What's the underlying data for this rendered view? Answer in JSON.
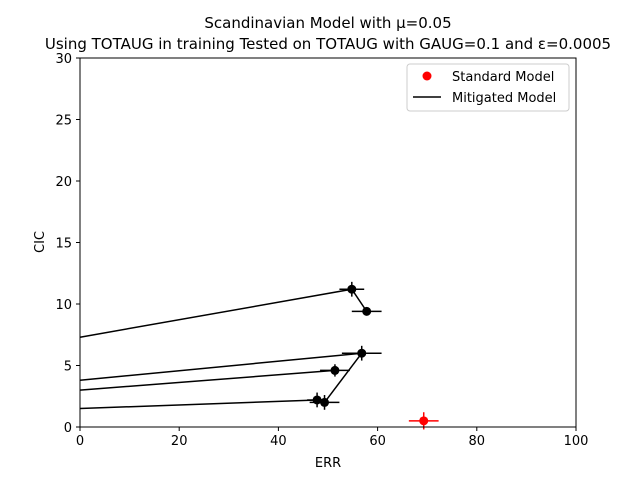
{
  "chart_data": {
    "type": "scatter",
    "title_line1": "Scandinavian Model with μ=0.05",
    "title_line2": "Using TOTAUG in training Tested on TOTAUG with GAUG=0.1 and ε=0.0005",
    "xlabel": "ERR",
    "ylabel": "CIC",
    "xlim": [
      0,
      100
    ],
    "ylim": [
      0,
      30
    ],
    "xticks": [
      "0",
      "20",
      "40",
      "60",
      "80",
      "100"
    ],
    "yticks": [
      "0",
      "5",
      "10",
      "15",
      "20",
      "25",
      "30"
    ],
    "grid": false,
    "legend_position": "top-right",
    "legend": [
      {
        "label": "Standard Model",
        "marker": "circle",
        "color": "#ff0000"
      },
      {
        "label": "Mitigated Model",
        "marker": "line",
        "color": "#000000"
      }
    ],
    "standard_points": [
      {
        "x": 69.3,
        "y": 0.5,
        "xerr": 3.0,
        "yerr": 0.7
      }
    ],
    "mitigated_points": [
      {
        "x": 54.8,
        "y": 11.2,
        "xerr": 2.5,
        "yerr": 0.6
      },
      {
        "x": 57.8,
        "y": 9.4,
        "xerr": 3.0,
        "yerr": 0.0
      },
      {
        "x": 56.8,
        "y": 6.0,
        "xerr": 4.0,
        "yerr": 0.6
      },
      {
        "x": 51.4,
        "y": 4.6,
        "xerr": 3.0,
        "yerr": 0.5
      },
      {
        "x": 47.8,
        "y": 2.2,
        "xerr": 2.0,
        "yerr": 0.6
      },
      {
        "x": 49.3,
        "y": 2.0,
        "xerr": 3.0,
        "yerr": 0.6
      }
    ],
    "mitigated_lines": [
      [
        [
          0,
          7.3
        ],
        [
          54.8,
          11.2
        ],
        [
          57.8,
          9.4
        ]
      ],
      [
        [
          0,
          3.8
        ],
        [
          56.8,
          6.0
        ]
      ],
      [
        [
          0,
          3.0
        ],
        [
          51.4,
          4.6
        ]
      ],
      [
        [
          0,
          1.5
        ],
        [
          47.8,
          2.2
        ]
      ],
      [
        [
          56.8,
          6.0
        ],
        [
          49.3,
          2.0
        ]
      ]
    ],
    "colors": {
      "standard": "#ff0000",
      "mitigated": "#000000"
    }
  }
}
